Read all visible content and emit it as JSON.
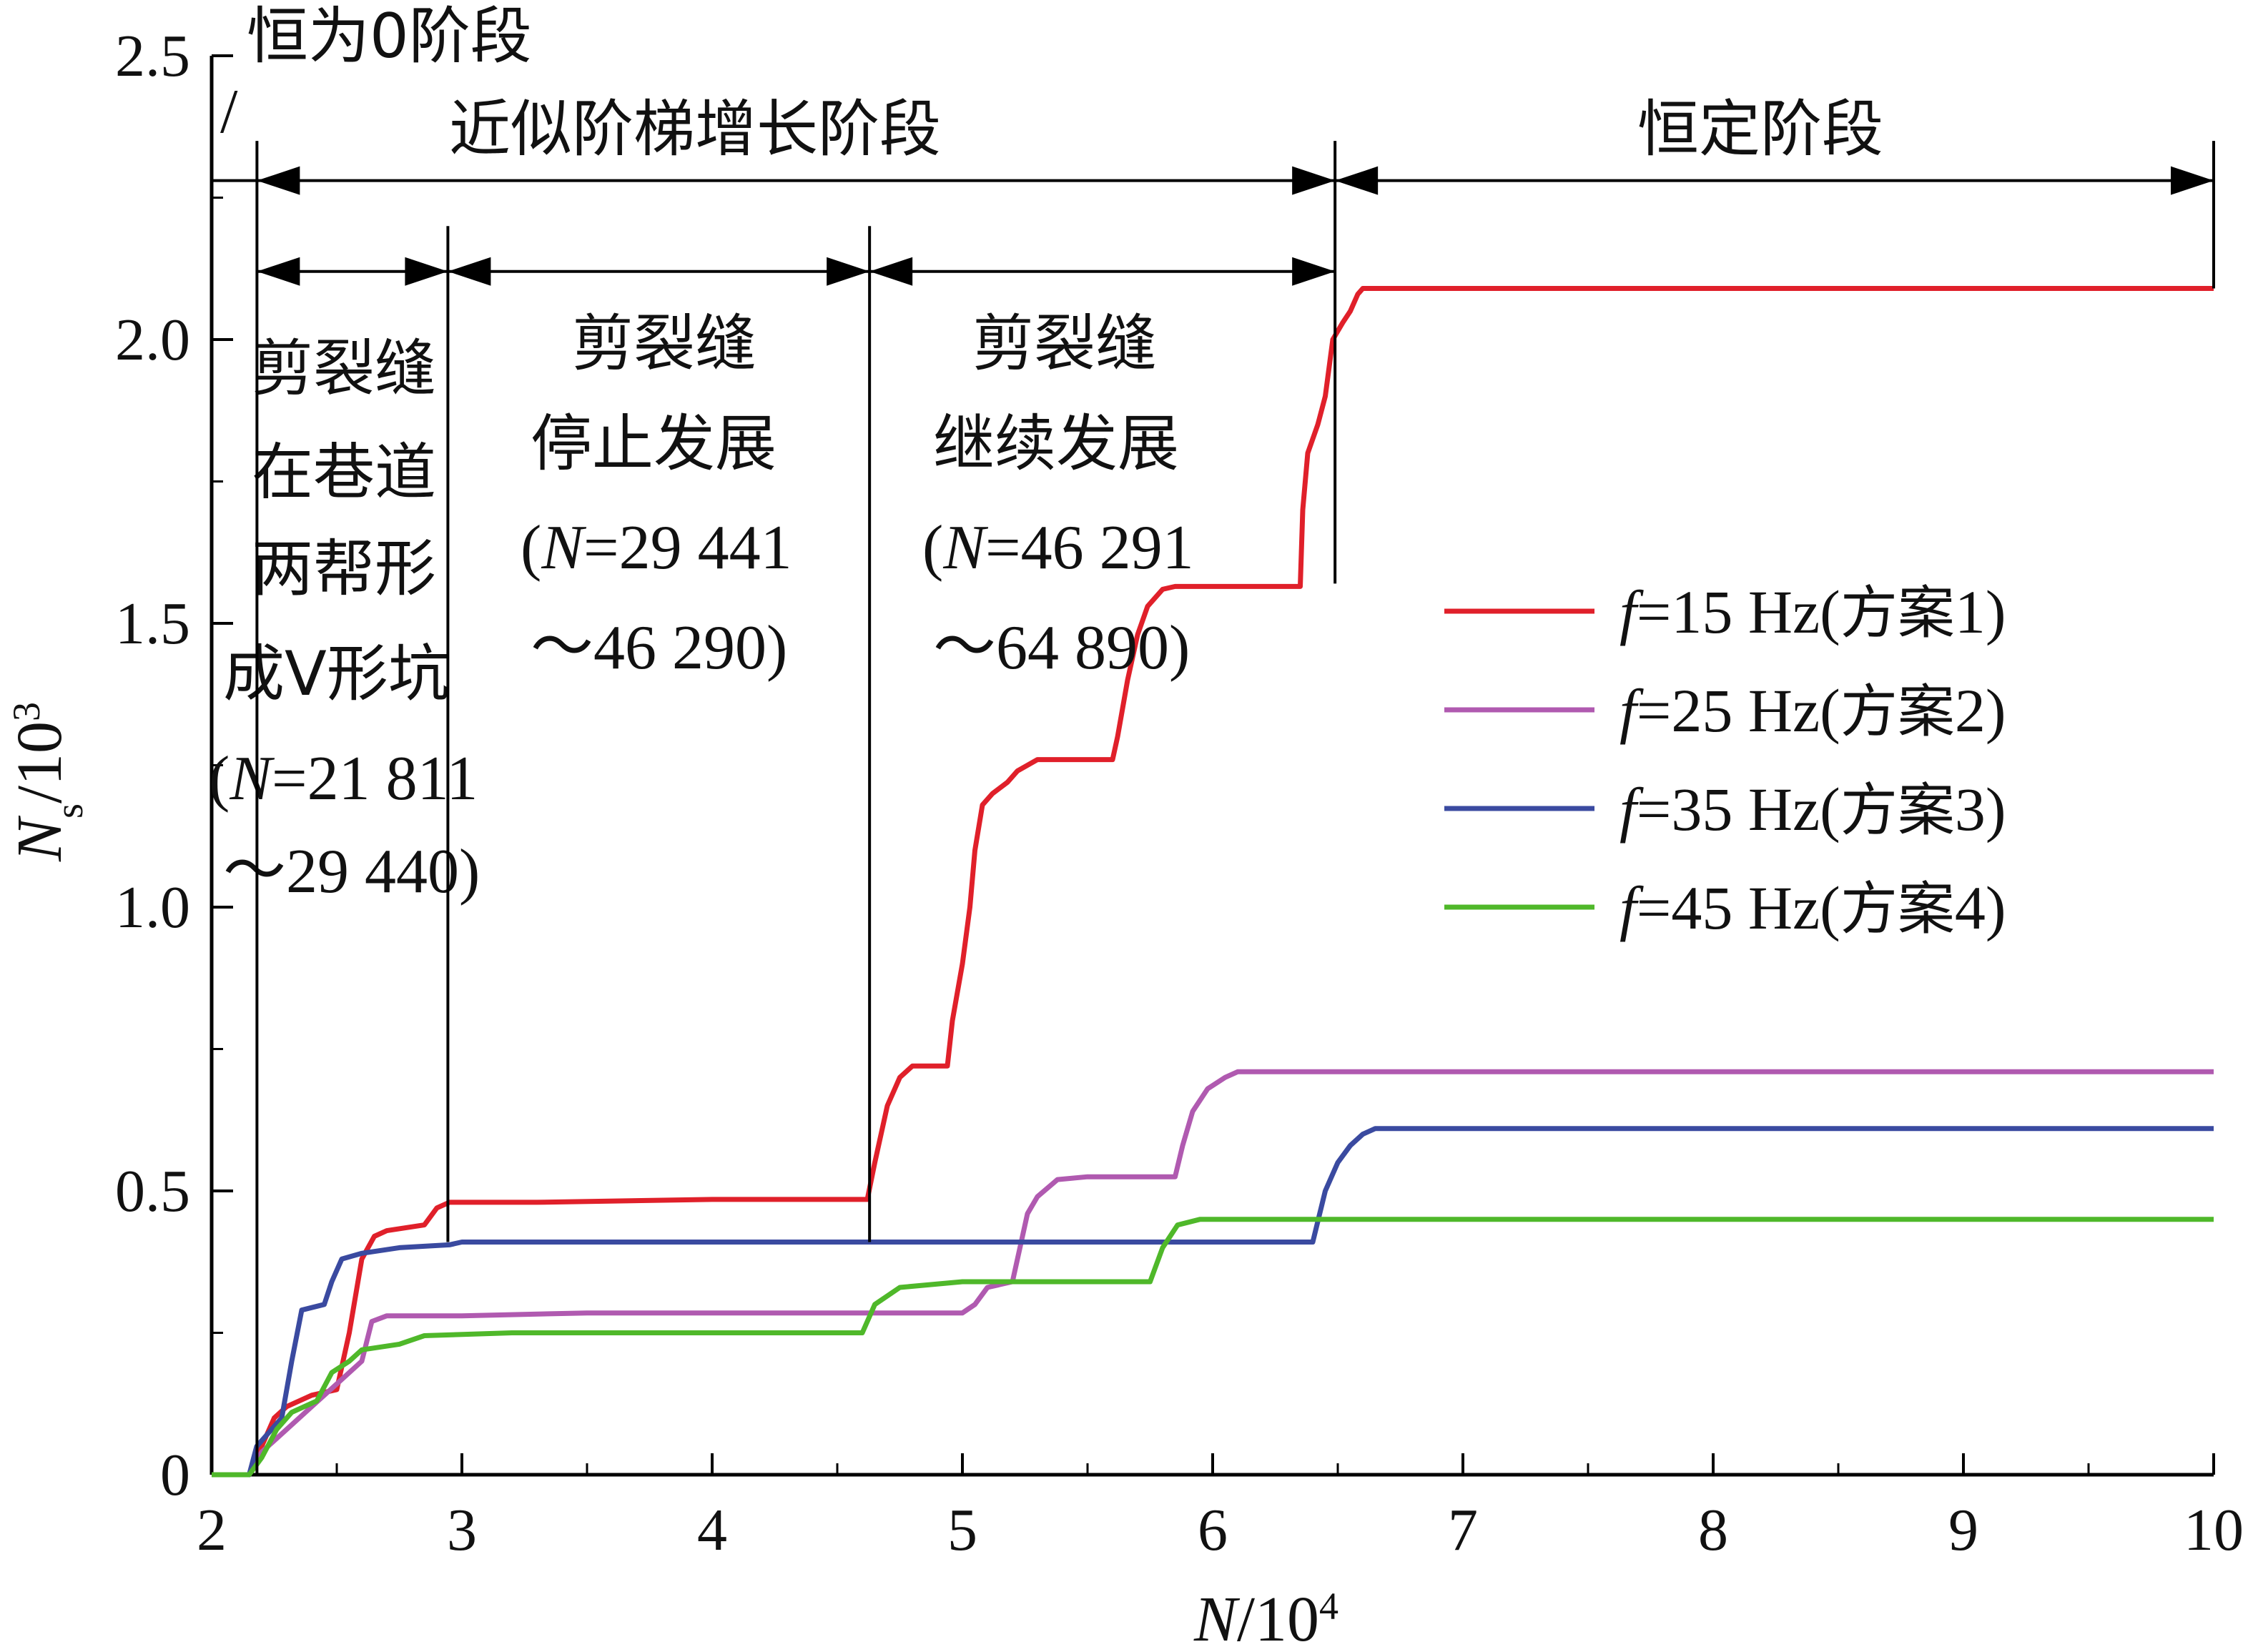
{
  "chart_data": {
    "type": "line",
    "xlabel_main": "N",
    "xlabel_unit": "/10",
    "xlabel_sup": "4",
    "ylabel_main": "N",
    "ylabel_sub": "s",
    "ylabel_unit": "/10",
    "ylabel_sup": "3",
    "xlim": [
      2,
      10
    ],
    "ylim": [
      0,
      2.5
    ],
    "x_ticks": [
      2,
      3,
      4,
      5,
      6,
      7,
      8,
      9,
      10
    ],
    "x_tick_labels": [
      "2",
      "3",
      "4",
      "5",
      "6",
      "7",
      "8",
      "9",
      "10"
    ],
    "y_ticks": [
      0,
      0.5,
      1.0,
      1.5,
      2.0,
      2.5
    ],
    "y_tick_labels": [
      "0",
      "0.5",
      "1.0",
      "1.5",
      "2.0",
      "2.5"
    ],
    "legend_position": "right-middle",
    "series": [
      {
        "name_italic": "f",
        "name_rest": "=15 Hz(",
        "name_cjk": "方案",
        "name_tail": "1)",
        "color": "#e0202a",
        "points": [
          [
            2.0,
            0
          ],
          [
            2.15,
            0
          ],
          [
            2.2,
            0.05
          ],
          [
            2.25,
            0.1
          ],
          [
            2.3,
            0.12
          ],
          [
            2.4,
            0.14
          ],
          [
            2.5,
            0.15
          ],
          [
            2.55,
            0.25
          ],
          [
            2.6,
            0.38
          ],
          [
            2.65,
            0.42
          ],
          [
            2.7,
            0.43
          ],
          [
            2.85,
            0.44
          ],
          [
            2.9,
            0.47
          ],
          [
            2.95,
            0.48
          ],
          [
            3.3,
            0.48
          ],
          [
            4.0,
            0.485
          ],
          [
            4.62,
            0.485
          ],
          [
            4.65,
            0.55
          ],
          [
            4.7,
            0.65
          ],
          [
            4.75,
            0.7
          ],
          [
            4.8,
            0.72
          ],
          [
            4.94,
            0.72
          ],
          [
            4.96,
            0.8
          ],
          [
            5.0,
            0.9
          ],
          [
            5.03,
            1.0
          ],
          [
            5.05,
            1.1
          ],
          [
            5.08,
            1.18
          ],
          [
            5.12,
            1.2
          ],
          [
            5.18,
            1.22
          ],
          [
            5.22,
            1.24
          ],
          [
            5.3,
            1.26
          ],
          [
            5.6,
            1.26
          ],
          [
            5.62,
            1.3
          ],
          [
            5.66,
            1.4
          ],
          [
            5.7,
            1.48
          ],
          [
            5.74,
            1.53
          ],
          [
            5.8,
            1.56
          ],
          [
            5.85,
            1.565
          ],
          [
            6.35,
            1.565
          ],
          [
            6.36,
            1.7
          ],
          [
            6.38,
            1.8
          ],
          [
            6.42,
            1.85
          ],
          [
            6.45,
            1.9
          ],
          [
            6.48,
            2.0
          ],
          [
            6.52,
            2.03
          ],
          [
            6.55,
            2.05
          ],
          [
            6.58,
            2.08
          ],
          [
            6.6,
            2.09
          ],
          [
            10.0,
            2.09
          ]
        ]
      },
      {
        "name_italic": "f",
        "name_rest": "=25 Hz(",
        "name_cjk": "方案",
        "name_tail": "2)",
        "color": "#b05ab0",
        "points": [
          [
            2.0,
            0
          ],
          [
            2.15,
            0
          ],
          [
            2.2,
            0.04
          ],
          [
            2.3,
            0.08
          ],
          [
            2.4,
            0.12
          ],
          [
            2.5,
            0.16
          ],
          [
            2.6,
            0.2
          ],
          [
            2.64,
            0.27
          ],
          [
            2.7,
            0.28
          ],
          [
            3.0,
            0.28
          ],
          [
            3.5,
            0.285
          ],
          [
            4.6,
            0.285
          ],
          [
            5.0,
            0.285
          ],
          [
            5.05,
            0.3
          ],
          [
            5.1,
            0.33
          ],
          [
            5.2,
            0.34
          ],
          [
            5.22,
            0.38
          ],
          [
            5.26,
            0.46
          ],
          [
            5.3,
            0.49
          ],
          [
            5.38,
            0.52
          ],
          [
            5.5,
            0.525
          ],
          [
            5.85,
            0.525
          ],
          [
            5.88,
            0.58
          ],
          [
            5.92,
            0.64
          ],
          [
            5.98,
            0.68
          ],
          [
            6.05,
            0.7
          ],
          [
            6.1,
            0.71
          ],
          [
            10.0,
            0.71
          ]
        ]
      },
      {
        "name_italic": "f",
        "name_rest": "=35 Hz(",
        "name_cjk": "方案",
        "name_tail": "3)",
        "color": "#3a4aa0",
        "points": [
          [
            2.0,
            0
          ],
          [
            2.15,
            0
          ],
          [
            2.18,
            0.05
          ],
          [
            2.22,
            0.07
          ],
          [
            2.28,
            0.1
          ],
          [
            2.32,
            0.2
          ],
          [
            2.36,
            0.29
          ],
          [
            2.45,
            0.3
          ],
          [
            2.48,
            0.34
          ],
          [
            2.52,
            0.38
          ],
          [
            2.6,
            0.39
          ],
          [
            2.75,
            0.4
          ],
          [
            2.95,
            0.405
          ],
          [
            3.0,
            0.41
          ],
          [
            4.6,
            0.41
          ],
          [
            6.4,
            0.41
          ],
          [
            6.45,
            0.5
          ],
          [
            6.5,
            0.55
          ],
          [
            6.55,
            0.58
          ],
          [
            6.6,
            0.6
          ],
          [
            6.65,
            0.61
          ],
          [
            10.0,
            0.61
          ]
        ]
      },
      {
        "name_italic": "f",
        "name_rest": "=45 Hz(",
        "name_cjk": "方案",
        "name_tail": "4)",
        "color": "#4fb82a",
        "points": [
          [
            2.0,
            0
          ],
          [
            2.15,
            0
          ],
          [
            2.2,
            0.03
          ],
          [
            2.26,
            0.08
          ],
          [
            2.32,
            0.11
          ],
          [
            2.42,
            0.13
          ],
          [
            2.48,
            0.18
          ],
          [
            2.55,
            0.2
          ],
          [
            2.6,
            0.22
          ],
          [
            2.75,
            0.23
          ],
          [
            2.85,
            0.245
          ],
          [
            3.2,
            0.25
          ],
          [
            4.6,
            0.25
          ],
          [
            4.65,
            0.3
          ],
          [
            4.75,
            0.33
          ],
          [
            5.0,
            0.34
          ],
          [
            5.75,
            0.34
          ],
          [
            5.8,
            0.4
          ],
          [
            5.86,
            0.44
          ],
          [
            5.95,
            0.45
          ],
          [
            10.0,
            0.45
          ]
        ]
      }
    ]
  },
  "annotations": {
    "stage_zero": "恒为0阶段",
    "stage_zero_slash": "/",
    "stage_step": "近似阶梯增长阶段",
    "stage_constant": "恒定阶段",
    "sub1_line1": "剪裂缝",
    "sub1_line2": "在巷道",
    "sub1_line3": "两帮形",
    "sub1_line4": "成V形坑",
    "sub1_range_open": "(",
    "sub1_range_n": "N",
    "sub1_range_val": "=21 811",
    "sub1_range_end": "～29 440)",
    "sub2_line1": "剪裂缝",
    "sub2_line2": "停止发展",
    "sub2_range_open": "(",
    "sub2_range_n": "N",
    "sub2_range_val": "=29 441",
    "sub2_range_end": "～46 290)",
    "sub3_line1": "剪裂缝",
    "sub3_line2": "继续发展",
    "sub3_range_open": "(",
    "sub3_range_n": "N",
    "sub3_range_val": "=46 291",
    "sub3_range_end": "～64 890)"
  }
}
